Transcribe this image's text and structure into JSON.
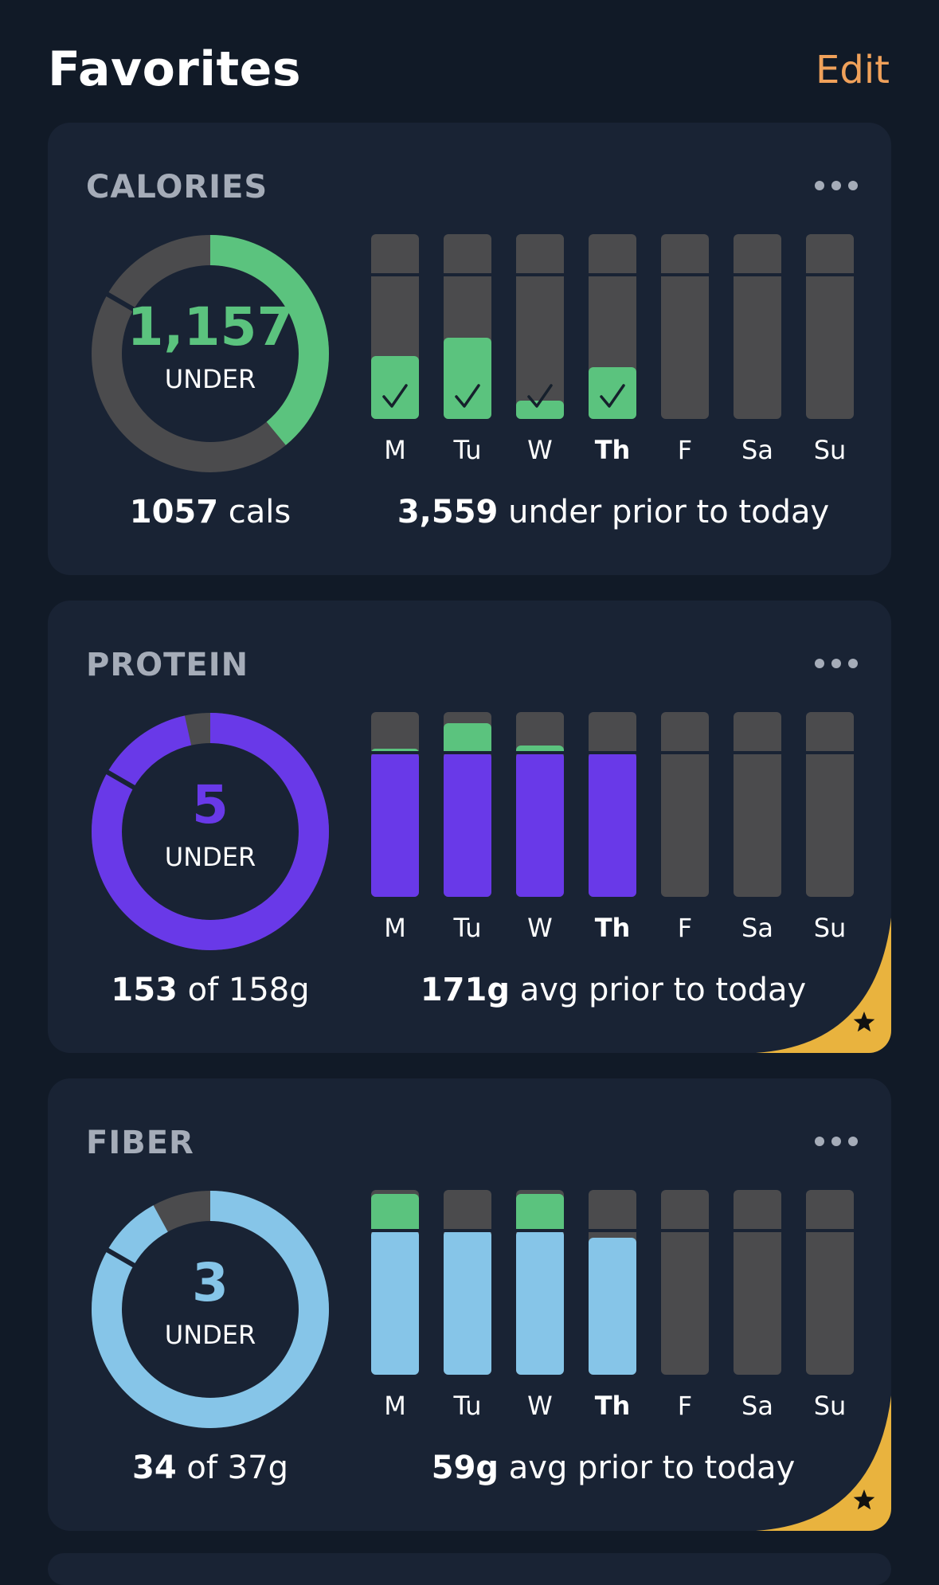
{
  "header": {
    "title": "Favorites",
    "edit_label": "Edit"
  },
  "days": [
    "M",
    "Tu",
    "W",
    "Th",
    "F",
    "Sa",
    "Su"
  ],
  "today_index": 3,
  "colors": {
    "green": "#5bc37e",
    "purple": "#6939e8",
    "light_blue": "#86c5e8",
    "track": "#4b4b4d",
    "edit_orange": "#f0a15a",
    "star_gold": "#e9b33e"
  },
  "cards": [
    {
      "id": "calories",
      "title": "CALORIES",
      "ring": {
        "value": "1,157",
        "label": "UNDER",
        "progress": 0.39,
        "color": "#5bc37e"
      },
      "bars": {
        "goal_fraction": 0.78,
        "fills": [
          0.34,
          0.44,
          0.1,
          0.28,
          0,
          0,
          0
        ],
        "over": [
          0,
          0,
          0,
          0,
          0,
          0,
          0
        ],
        "checks": [
          true,
          true,
          true,
          true,
          false,
          false,
          false
        ],
        "fill_color": "#5bc37e",
        "over_color": "#5bc37e"
      },
      "left_stat": {
        "strong": "1057",
        "rest": "cals"
      },
      "right_stat": {
        "strong": "3,559",
        "rest": "under prior to today"
      },
      "starred": false
    },
    {
      "id": "protein",
      "title": "PROTEIN",
      "ring": {
        "value": "5",
        "label": "UNDER",
        "progress": 0.965,
        "color": "#6939e8"
      },
      "bars": {
        "goal_fraction": 0.78,
        "fills": [
          0.78,
          0.78,
          0.78,
          0.78,
          0,
          0,
          0
        ],
        "over": [
          0.02,
          0.16,
          0.04,
          0,
          0,
          0,
          0
        ],
        "checks": [
          false,
          false,
          false,
          false,
          false,
          false,
          false
        ],
        "fill_color": "#6939e8",
        "over_color": "#5bc37e"
      },
      "left_stat": {
        "strong": "153",
        "rest": "of 158g"
      },
      "right_stat": {
        "strong": "171g",
        "rest": "avg prior to today"
      },
      "starred": true
    },
    {
      "id": "fiber",
      "title": "FIBER",
      "ring": {
        "value": "3",
        "label": "UNDER",
        "progress": 0.92,
        "color": "#86c5e8"
      },
      "bars": {
        "goal_fraction": 0.78,
        "fills": [
          0.78,
          0.78,
          0.78,
          0.74,
          0,
          0,
          0
        ],
        "over": [
          0.2,
          0,
          0.2,
          0,
          0,
          0,
          0
        ],
        "checks": [
          false,
          false,
          false,
          false,
          false,
          false,
          false
        ],
        "fill_color": "#86c5e8",
        "over_color": "#5bc37e"
      },
      "left_stat": {
        "strong": "34",
        "rest": "of 37g"
      },
      "right_stat": {
        "strong": "59g",
        "rest": "avg prior to today"
      },
      "starred": true
    }
  ]
}
